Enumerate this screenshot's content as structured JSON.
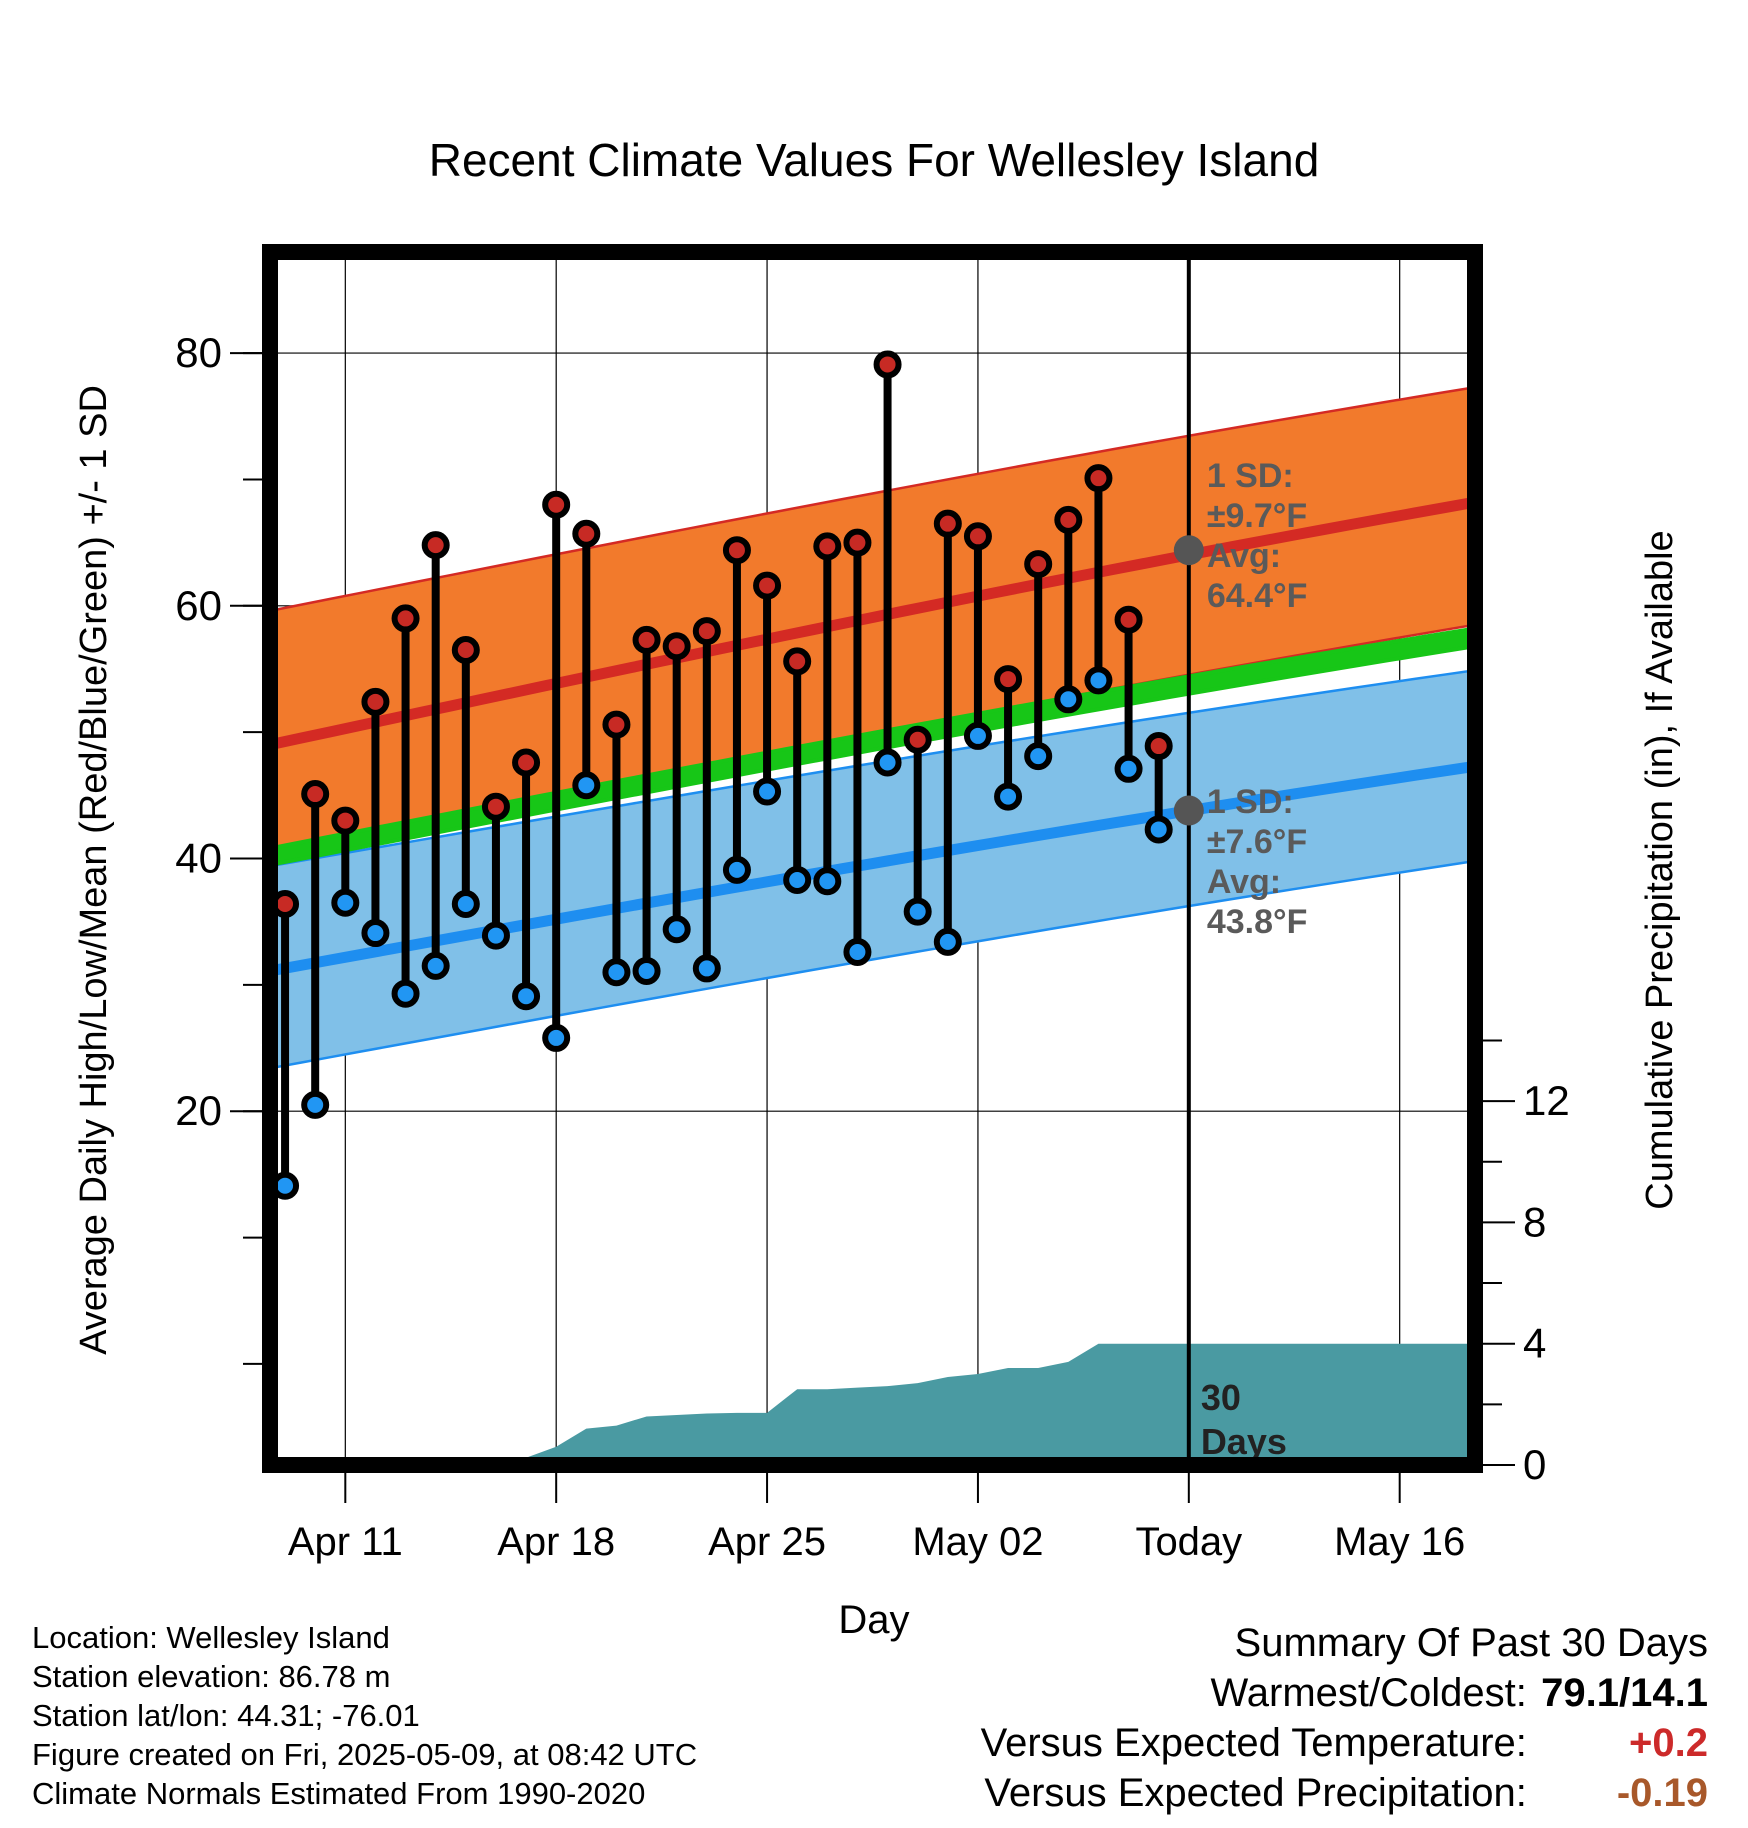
{
  "chart_data": {
    "type": "line",
    "title": "Recent Climate Values For Wellesley Island",
    "xlabel": "Day",
    "ylabel": "Average Daily High/Low/Mean (Red/Blue/Green) +/- 1 SD",
    "ylabel_right": "Cumulative Precipitation (in), If Available",
    "x_ticks": [
      "Apr 11",
      "Apr 18",
      "Apr 25",
      "May 02",
      "Today",
      "May 16"
    ],
    "x_tick_days": [
      2,
      9,
      16,
      23,
      30,
      37
    ],
    "x_range_days": [
      -0.5,
      39.5
    ],
    "ylim": [
      -8,
      88
    ],
    "y_ticks": [
      20,
      40,
      60,
      80
    ],
    "y_ticks_right": [
      "0",
      "4",
      "8",
      "12"
    ],
    "precip_ylim": [
      0,
      40
    ],
    "grid": true,
    "daily_observations": {
      "days": [
        0,
        1,
        2,
        3,
        4,
        5,
        6,
        7,
        8,
        9,
        10,
        11,
        12,
        13,
        14,
        15,
        16,
        17,
        18,
        19,
        20,
        21,
        22,
        23,
        24,
        25,
        26,
        27,
        28,
        29
      ],
      "high": [
        36.4,
        45.1,
        43.0,
        52.4,
        59.0,
        64.8,
        56.5,
        44.1,
        47.6,
        68.0,
        65.7,
        50.6,
        57.3,
        56.8,
        58.0,
        64.4,
        61.6,
        55.6,
        64.7,
        65.0,
        79.1,
        49.4,
        66.5,
        65.5,
        54.2,
        63.3,
        66.8,
        70.1,
        58.9,
        48.9
      ],
      "low": [
        14.1,
        20.5,
        36.5,
        34.1,
        29.3,
        31.5,
        36.4,
        33.9,
        29.1,
        25.8,
        45.8,
        31.0,
        31.1,
        34.4,
        31.3,
        39.1,
        45.3,
        38.3,
        38.2,
        32.6,
        47.6,
        35.8,
        33.4,
        49.7,
        44.9,
        48.1,
        52.6,
        54.1,
        47.1,
        42.3
      ]
    },
    "normals": {
      "days_range": [
        -0.5,
        39.5
      ],
      "high_avg": [
        49.0,
        68.2
      ],
      "high_sd_upper": [
        59.6,
        77.3
      ],
      "high_sd_lower": [
        40.3,
        58.5
      ],
      "mean_band_top": [
        40.8,
        58.2
      ],
      "mean_band_bottom": [
        39.5,
        56.8
      ],
      "low_avg": [
        31.1,
        47.3
      ],
      "low_sd_upper": [
        39.4,
        54.9
      ],
      "low_sd_lower": [
        23.4,
        39.8
      ]
    },
    "today_markers": {
      "high": {
        "label_sd": "1 SD:",
        "sd_value": "±9.7°F",
        "label_avg": "Avg:",
        "avg_value": "64.4°F",
        "value": 64.4
      },
      "low": {
        "label_sd": "1 SD:",
        "sd_value": "±7.6°F",
        "label_avg": "Avg:",
        "avg_value": "43.8°F",
        "value": 43.8
      }
    },
    "precipitation_cumulative": {
      "points": [
        [
          -0.5,
          0
        ],
        [
          1.2,
          0
        ],
        [
          2.0,
          0.12
        ],
        [
          5.0,
          0.14
        ],
        [
          6.0,
          0.2
        ],
        [
          7.0,
          0.22
        ],
        [
          8.0,
          0.24
        ],
        [
          9.0,
          0.6
        ],
        [
          10.0,
          1.2
        ],
        [
          11.0,
          1.3
        ],
        [
          12.0,
          1.6
        ],
        [
          13.0,
          1.65
        ],
        [
          14.0,
          1.7
        ],
        [
          15.0,
          1.72
        ],
        [
          16.0,
          1.72
        ],
        [
          17.0,
          2.5
        ],
        [
          18.0,
          2.5
        ],
        [
          19.0,
          2.55
        ],
        [
          20.0,
          2.6
        ],
        [
          21.0,
          2.7
        ],
        [
          22.0,
          2.9
        ],
        [
          23.0,
          3.0
        ],
        [
          24.0,
          3.2
        ],
        [
          25.0,
          3.2
        ],
        [
          26.0,
          3.4
        ],
        [
          27.0,
          4.0
        ],
        [
          27.5,
          4.0
        ],
        [
          39.5,
          4.0
        ]
      ]
    },
    "period_label": "30 Days",
    "colors": {
      "high_band": "#f27a2c",
      "high_line": "#d42a24",
      "mean_band": "#17c617",
      "low_band": "#80c0e8",
      "low_line": "#1e8ef0",
      "high_dot": "#c72a24",
      "low_dot": "#2196f3",
      "precip": "#4a9aa2",
      "today_dot": "#555555",
      "annotation_text": "#5a5a5a",
      "positive": "#cc2a2a",
      "negative": "#a8582a"
    }
  },
  "station_info": {
    "location": "Location: Wellesley Island",
    "elevation": "Station elevation: 86.78 m",
    "latlon": "Station lat/lon: 44.31; -76.01",
    "created": "Figure created on Fri, 2025-05-09, at 08:42 UTC",
    "normals": "Climate Normals Estimated From 1990-2020"
  },
  "summary": {
    "title": "Summary Of Past 30 Days",
    "warmest_coldest_label": "Warmest/Coldest:",
    "warmest_coldest_value": "79.1/14.1",
    "temp_label": "Versus Expected Temperature:",
    "temp_value": "+0.2",
    "precip_label": "Versus Expected Precipitation:",
    "precip_value": "-0.19"
  }
}
